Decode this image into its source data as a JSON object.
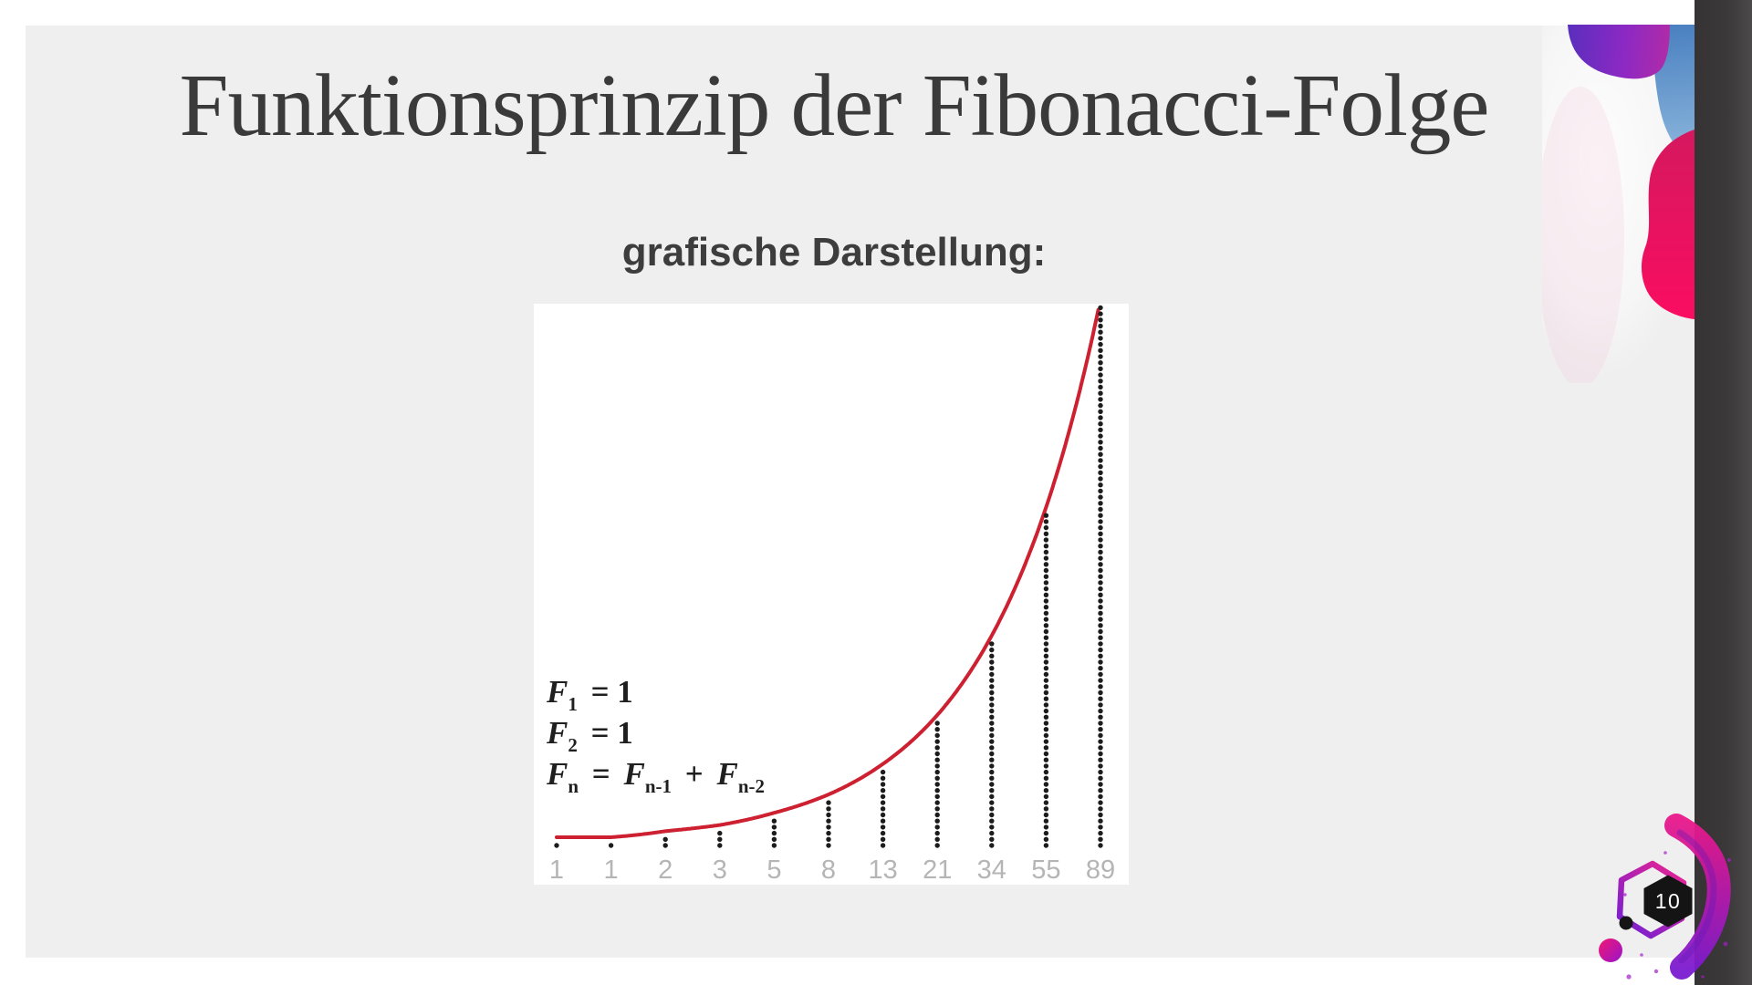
{
  "slide": {
    "title": "Funktionsprinzip der Fibonacci-Folge",
    "subtitle": "grafische Darstellung:",
    "page_number": "10"
  },
  "formulas": {
    "line1": {
      "var": "F",
      "sub": "1",
      "rest": "= 1"
    },
    "line2": {
      "var": "F",
      "sub": "2",
      "rest": "= 1"
    },
    "line3": {
      "var1": "F",
      "sub1": "n",
      "eq": "=",
      "var2": "F",
      "sub2": "n-1",
      "plus": "+",
      "var3": "F",
      "sub3": "n-2"
    }
  },
  "chart_data": {
    "type": "scatter",
    "description": "Fibonacci sequence shown as columns of stacked dots (dot count = Fibonacci number) with an exponential golden-ratio growth curve",
    "categories": [
      "1",
      "1",
      "2",
      "3",
      "5",
      "8",
      "13",
      "21",
      "34",
      "55",
      "89"
    ],
    "values": [
      1,
      1,
      2,
      3,
      5,
      8,
      13,
      21,
      34,
      55,
      89
    ],
    "series": [
      {
        "name": "Fibonacci dot stacks",
        "values": [
          1,
          1,
          2,
          3,
          5,
          8,
          13,
          21,
          34,
          55,
          89
        ]
      }
    ],
    "trend_curve": "exponential",
    "title": "",
    "xlabel": "",
    "ylabel": "",
    "grid": false,
    "legend": false,
    "colors": {
      "dot": "#1c1c1c",
      "curve": "#cd2030",
      "axis_label": "#b5b5b5",
      "plot_background": "#ffffff"
    }
  },
  "decor": {
    "page_background": "#ffffff",
    "slide_background": "#f0eff0",
    "right_band_dark": "#3a3738",
    "right_band_light": "#4c494a",
    "purple": "#5b2ebd",
    "magenta": "#b12ba7",
    "blue": "#4a80c1",
    "crimson": "#e8115f",
    "badge_hex_fill": "#141414",
    "badge_number_color": "#ffffff"
  }
}
